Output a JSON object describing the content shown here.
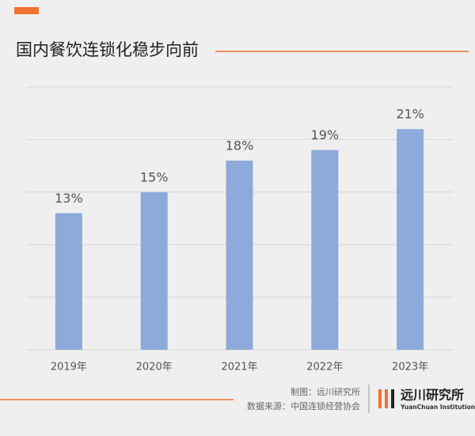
{
  "chart_data": {
    "type": "bar",
    "title": "国内餐饮连锁化稳步向前",
    "categories": [
      "2019年",
      "2020年",
      "2021年",
      "2022年",
      "2023年"
    ],
    "values": [
      13,
      15,
      18,
      19,
      21
    ],
    "value_labels": [
      "13%",
      "15%",
      "18%",
      "19%",
      "21%"
    ],
    "color": "#8eaadb",
    "ylim": [
      0,
      25
    ],
    "yticks": [
      0,
      5,
      10,
      15,
      20,
      25
    ],
    "grid": true
  },
  "footer": {
    "credit": "制图：远川研究所",
    "source": "数据来源：中国连锁经营协会",
    "logo_name": "远川研究所",
    "logo_sub": "YuanChuan Institution"
  }
}
